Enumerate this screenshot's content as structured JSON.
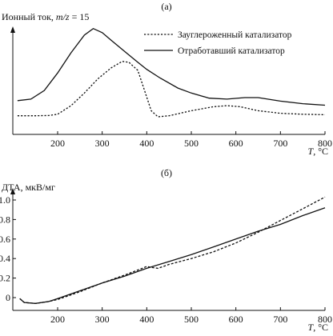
{
  "figure": {
    "panel_a_label": "(а)",
    "panel_b_label": "(б)"
  },
  "chart_data": [
    {
      "type": "line",
      "panel": "(а)",
      "ylabel": "Ионный ток, m/z = 15",
      "xlabel": "T, °C",
      "x_ticks": [
        "200",
        "300",
        "400",
        "500",
        "600",
        "700",
        "800"
      ],
      "xlim": [
        110,
        800
      ],
      "y_ticks": [],
      "y_scale": "arbitrary units (no tick values)",
      "legend_position": "top-right",
      "series": [
        {
          "name": "Зауглероженный катализатор",
          "style": "dashed",
          "color": "#111111",
          "points": [
            [
              110,
              1.0
            ],
            [
              150,
              1.0
            ],
            [
              180,
              1.05
            ],
            [
              200,
              1.3
            ],
            [
              230,
              3.0
            ],
            [
              260,
              5.5
            ],
            [
              290,
              8.3
            ],
            [
              320,
              10.5
            ],
            [
              345,
              11.8
            ],
            [
              360,
              11.6
            ],
            [
              380,
              10.0
            ],
            [
              395,
              6.0
            ],
            [
              410,
              2.0
            ],
            [
              425,
              0.8
            ],
            [
              450,
              1.0
            ],
            [
              500,
              2.0
            ],
            [
              550,
              2.8
            ],
            [
              580,
              3.0
            ],
            [
              610,
              2.8
            ],
            [
              650,
              2.0
            ],
            [
              700,
              1.5
            ],
            [
              750,
              1.3
            ],
            [
              800,
              1.2
            ]
          ]
        },
        {
          "name": "Отработавший катализатор",
          "style": "solid",
          "color": "#111111",
          "points": [
            [
              110,
              4.0
            ],
            [
              140,
              4.3
            ],
            [
              170,
              6.0
            ],
            [
              200,
              9.5
            ],
            [
              230,
              13.5
            ],
            [
              260,
              17.0
            ],
            [
              280,
              18.3
            ],
            [
              300,
              17.5
            ],
            [
              320,
              16.0
            ],
            [
              350,
              13.8
            ],
            [
              380,
              11.6
            ],
            [
              400,
              10.2
            ],
            [
              430,
              8.5
            ],
            [
              470,
              6.5
            ],
            [
              500,
              5.5
            ],
            [
              540,
              4.5
            ],
            [
              580,
              4.3
            ],
            [
              620,
              4.6
            ],
            [
              650,
              4.6
            ],
            [
              700,
              3.9
            ],
            [
              750,
              3.4
            ],
            [
              800,
              3.1
            ]
          ]
        }
      ]
    },
    {
      "type": "line",
      "panel": "(б)",
      "ylabel": "ДТА, мкВ/мг",
      "xlabel": "T, °C",
      "x_ticks": [
        "200",
        "300",
        "400",
        "500",
        "600",
        "700",
        "800"
      ],
      "y_ticks": [
        "0",
        "0.2",
        "0.4",
        "0.6",
        "0.8",
        "1.0"
      ],
      "xlim": [
        110,
        800
      ],
      "ylim": [
        -0.07,
        1.05
      ],
      "grid": false,
      "series": [
        {
          "style": "dashed",
          "color": "#111111",
          "points": [
            [
              115,
              -0.01
            ],
            [
              125,
              -0.05
            ],
            [
              150,
              -0.06
            ],
            [
              180,
              -0.04
            ],
            [
              200,
              -0.02
            ],
            [
              250,
              0.06
            ],
            [
              300,
              0.15
            ],
            [
              350,
              0.23
            ],
            [
              390,
              0.3
            ],
            [
              400,
              0.32
            ],
            [
              410,
              0.31
            ],
            [
              425,
              0.3
            ],
            [
              450,
              0.34
            ],
            [
              500,
              0.4
            ],
            [
              550,
              0.47
            ],
            [
              600,
              0.56
            ],
            [
              650,
              0.67
            ],
            [
              700,
              0.79
            ],
            [
              750,
              0.91
            ],
            [
              800,
              1.03
            ]
          ]
        },
        {
          "style": "solid",
          "color": "#111111",
          "points": [
            [
              115,
              -0.01
            ],
            [
              125,
              -0.05
            ],
            [
              150,
              -0.06
            ],
            [
              180,
              -0.04
            ],
            [
              200,
              -0.01
            ],
            [
              250,
              0.07
            ],
            [
              300,
              0.15
            ],
            [
              350,
              0.22
            ],
            [
              400,
              0.3
            ],
            [
              450,
              0.37
            ],
            [
              500,
              0.44
            ],
            [
              550,
              0.52
            ],
            [
              600,
              0.6
            ],
            [
              650,
              0.68
            ],
            [
              700,
              0.75
            ],
            [
              750,
              0.84
            ],
            [
              800,
              0.92
            ]
          ]
        }
      ]
    }
  ]
}
